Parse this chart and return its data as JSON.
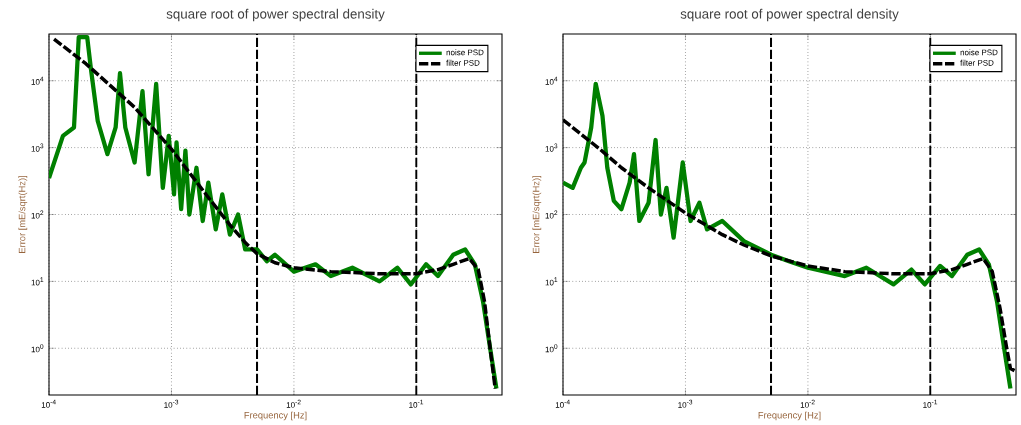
{
  "chart_data": [
    {
      "type": "line",
      "title": "square root of power spectral density",
      "xlabel": "Frequency [Hz]",
      "ylabel": "Error [mE/sqrt(Hz)]",
      "log": "xy",
      "grid": true,
      "legend": "top right",
      "xlim": [
        0.0001,
        0.5
      ],
      "ylim": [
        0.2,
        50000
      ],
      "xticks": [
        {
          "value": 0.0001,
          "label": "10$^{-4}$"
        },
        {
          "value": 0.001,
          "label": "10$^{-3}$"
        },
        {
          "value": 0.01,
          "label": "10$^{-2}$"
        },
        {
          "value": 0.1,
          "label": "10$^{-1}$"
        }
      ],
      "yticks": [
        {
          "value": 1,
          "label": "10$^{0}$"
        },
        {
          "value": 10,
          "label": "10$^{1}$"
        },
        {
          "value": 100,
          "label": "10$^{2}$"
        },
        {
          "value": 1000,
          "label": "10$^{3}$"
        },
        {
          "value": 10000,
          "label": "10$^{4}$"
        }
      ],
      "ref_lines": [
        {
          "axis": "x",
          "value": 0.005,
          "color": "#000000",
          "line_style": "dashed"
        },
        {
          "axis": "x",
          "value": 0.1,
          "color": "#000000",
          "line_style": "dashed"
        }
      ],
      "series": [
        {
          "name": "noise PSD",
          "color": "#008000",
          "line_style": "solid",
          "x": [
            0.0001,
            0.00013,
            0.00016,
            0.000175,
            0.000205,
            0.00022,
            0.00025,
            0.0003,
            0.00035,
            0.00038,
            0.00042,
            0.0005,
            0.00058,
            0.00065,
            0.00075,
            0.00085,
            0.00095,
            0.00105,
            0.0011,
            0.0012,
            0.0013,
            0.0014,
            0.0016,
            0.0018,
            0.002,
            0.0023,
            0.0026,
            0.003,
            0.0035,
            0.004,
            0.005,
            0.006,
            0.007,
            0.01,
            0.015,
            0.02,
            0.03,
            0.05,
            0.07,
            0.09,
            0.12,
            0.15,
            0.2,
            0.25,
            0.3,
            0.35,
            0.4,
            0.45
          ],
          "values": [
            350,
            1500,
            2000,
            45000,
            45000,
            15000,
            2500,
            800,
            2000,
            13000,
            2000,
            600,
            7000,
            400,
            9000,
            250,
            1500,
            200,
            1200,
            120,
            900,
            100,
            500,
            80,
            300,
            60,
            200,
            50,
            100,
            30,
            30,
            20,
            25,
            14,
            18,
            12,
            16,
            10,
            16,
            9,
            18,
            12,
            25,
            30,
            18,
            5,
            1,
            0.25
          ]
        },
        {
          "name": "filter PSD",
          "color": "#000000",
          "line_style": "dashed",
          "x": [
            0.00011,
            0.0002,
            0.0005,
            0.001,
            0.002,
            0.003,
            0.004,
            0.005,
            0.007,
            0.01,
            0.02,
            0.05,
            0.1,
            0.15,
            0.2,
            0.27,
            0.32,
            0.36,
            0.4,
            0.44
          ],
          "values": [
            42000,
            18000,
            4000,
            950,
            180,
            70,
            38,
            26,
            19,
            16,
            14,
            13,
            13,
            15,
            18,
            22,
            15,
            5,
            1,
            0.25
          ]
        }
      ]
    },
    {
      "type": "line",
      "title": "square root of power spectral density",
      "xlabel": "Frequency [Hz]",
      "ylabel": "Error [mE/sqrt(Hz)]",
      "log": "xy",
      "grid": true,
      "legend": "top right",
      "xlim": [
        0.0001,
        0.5
      ],
      "ylim": [
        0.2,
        50000
      ],
      "xticks": [
        {
          "value": 0.0001,
          "label": "10$^{-4}$"
        },
        {
          "value": 0.001,
          "label": "10$^{-3}$"
        },
        {
          "value": 0.01,
          "label": "10$^{-2}$"
        },
        {
          "value": 0.1,
          "label": "10$^{-1}$"
        }
      ],
      "yticks": [
        {
          "value": 1,
          "label": "10$^{0}$"
        },
        {
          "value": 10,
          "label": "10$^{1}$"
        },
        {
          "value": 100,
          "label": "10$^{2}$"
        },
        {
          "value": 1000,
          "label": "10$^{3}$"
        },
        {
          "value": 10000,
          "label": "10$^{4}$"
        }
      ],
      "ref_lines": [
        {
          "axis": "x",
          "value": 0.005,
          "color": "#000000",
          "line_style": "dashed"
        },
        {
          "axis": "x",
          "value": 0.1,
          "color": "#000000",
          "line_style": "dashed"
        }
      ],
      "series": [
        {
          "name": "noise PSD",
          "color": "#008000",
          "line_style": "solid",
          "x": [
            0.0001,
            0.00012,
            0.00014,
            0.00015,
            0.00017,
            0.000185,
            0.00021,
            0.00023,
            0.00026,
            0.0003,
            0.00035,
            0.00038,
            0.00042,
            0.0005,
            0.00057,
            0.00063,
            0.0007,
            0.0008,
            0.00095,
            0.0011,
            0.0013,
            0.0015,
            0.002,
            0.003,
            0.005,
            0.007,
            0.01,
            0.02,
            0.03,
            0.05,
            0.07,
            0.09,
            0.12,
            0.15,
            0.2,
            0.25,
            0.3,
            0.35,
            0.4,
            0.45
          ],
          "values": [
            300,
            250,
            500,
            600,
            2000,
            9000,
            3000,
            500,
            160,
            120,
            300,
            800,
            80,
            150,
            1300,
            100,
            250,
            45,
            600,
            80,
            150,
            60,
            80,
            40,
            25,
            20,
            16,
            12,
            16,
            9,
            15,
            9,
            17,
            12,
            25,
            30,
            18,
            5,
            1,
            0.25
          ]
        },
        {
          "name": "filter PSD",
          "color": "#000000",
          "line_style": "dashed",
          "x": [
            0.0001,
            0.0002,
            0.0003,
            0.0005,
            0.001,
            0.002,
            0.003,
            0.005,
            0.01,
            0.02,
            0.05,
            0.1,
            0.15,
            0.2,
            0.27,
            0.32,
            0.37,
            0.42,
            0.45,
            0.5
          ],
          "values": [
            2600,
            950,
            500,
            250,
            105,
            50,
            35,
            24,
            17,
            14,
            13,
            13,
            15,
            18,
            22,
            14,
            4,
            1,
            0.5,
            0.45
          ]
        }
      ]
    }
  ]
}
